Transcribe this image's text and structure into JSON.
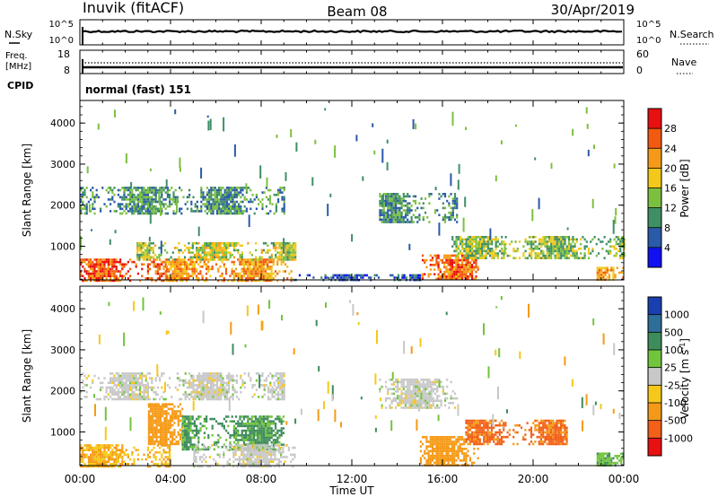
{
  "header": {
    "station": "Inuvik (fitACF)",
    "beam": "Beam 08",
    "date": "30/Apr/2019"
  },
  "noise_panel": {
    "left_label": "N.Sky",
    "right_label": "N.Search",
    "left_ticks": [
      "10^5",
      "10^0"
    ],
    "right_ticks": [
      "10^5",
      "10^0"
    ]
  },
  "freq_panel": {
    "left_label_1": "Freq.",
    "left_label_2": "[MHz]",
    "right_label": "Nave",
    "left_ticks": [
      "18",
      "8"
    ],
    "right_ticks": [
      "60",
      "0"
    ],
    "cpid_label": "CPID",
    "cpid_text": "normal (fast) 151"
  },
  "axes": {
    "x_ticks": [
      "00:00",
      "04:00",
      "08:00",
      "12:00",
      "16:00",
      "20:00",
      "00:00"
    ],
    "x_label": "Time UT",
    "y_label": "Slant Range [km]",
    "y_ticks": [
      "1000",
      "2000",
      "3000",
      "4000"
    ]
  },
  "power_scale": {
    "label": "Power [dB]",
    "ticks": [
      "4",
      "8",
      "12",
      "16",
      "20",
      "24",
      "28"
    ],
    "colors": [
      "#1010f0",
      "#2a5aa8",
      "#3f8f65",
      "#7cc040",
      "#f2c81a",
      "#f59a18",
      "#f25a10",
      "#e81010"
    ]
  },
  "velocity_scale": {
    "label": "Velocity [m s",
    "label_sup": "-1",
    "label_end": "]",
    "ticks": [
      "1000",
      "500",
      "100",
      "25",
      "-25",
      "-100",
      "-500",
      "-1000"
    ],
    "colors": [
      "#1a3fb0",
      "#2e6e98",
      "#3e8c5c",
      "#72c43c",
      "#c8c8c8",
      "#f5c81a",
      "#f59a18",
      "#f2601a",
      "#e81010"
    ]
  },
  "chart_data": [
    {
      "type": "heatmap",
      "title": "Power",
      "xlabel": "Time UT",
      "ylabel": "Slant Range [km]",
      "xlim": [
        0,
        24
      ],
      "ylim": [
        180,
        4550
      ],
      "zlim": [
        0,
        32
      ],
      "echo_regions": [
        {
          "t": [
            0,
            3.8
          ],
          "r": [
            180,
            700
          ],
          "value": 26
        },
        {
          "t": [
            3.8,
            9.4
          ],
          "r": [
            180,
            700
          ],
          "value": 22
        },
        {
          "t": [
            2.5,
            9.5
          ],
          "r": [
            700,
            1100
          ],
          "value": 15
        },
        {
          "t": [
            0,
            9.0
          ],
          "r": [
            1800,
            2450
          ],
          "value": 10
        },
        {
          "t": [
            9.4,
            15.0
          ],
          "r": [
            180,
            320
          ],
          "value": 6
        },
        {
          "t": [
            15.0,
            17.6
          ],
          "r": [
            180,
            800
          ],
          "value": 25
        },
        {
          "t": [
            16.4,
            24
          ],
          "r": [
            700,
            1250
          ],
          "value": 14
        },
        {
          "t": [
            13.2,
            16.6
          ],
          "r": [
            1600,
            2300
          ],
          "value": 10
        },
        {
          "t": [
            22.8,
            24
          ],
          "r": [
            180,
            500
          ],
          "value": 22
        }
      ]
    },
    {
      "type": "heatmap",
      "title": "Velocity",
      "xlabel": "Time UT",
      "ylabel": "Slant Range [km]",
      "xlim": [
        0,
        24
      ],
      "ylim": [
        180,
        4550
      ],
      "zlim": [
        -1000,
        1000
      ],
      "echo_regions": [
        {
          "t": [
            0,
            4.0
          ],
          "r": [
            180,
            700
          ],
          "value": -100
        },
        {
          "t": [
            3.0,
            4.5
          ],
          "r": [
            700,
            1700
          ],
          "value": -300
        },
        {
          "t": [
            4.5,
            9.0
          ],
          "r": [
            600,
            1400
          ],
          "value": 120
        },
        {
          "t": [
            5.0,
            9.5
          ],
          "r": [
            180,
            700
          ],
          "value": 0
        },
        {
          "t": [
            0,
            9.0
          ],
          "r": [
            1800,
            2450
          ],
          "value": 0
        },
        {
          "t": [
            13.2,
            16.6
          ],
          "r": [
            1600,
            2300
          ],
          "value": 0
        },
        {
          "t": [
            15.0,
            17.6
          ],
          "r": [
            180,
            900
          ],
          "value": -200
        },
        {
          "t": [
            17.0,
            21.5
          ],
          "r": [
            700,
            1300
          ],
          "value": -600
        },
        {
          "t": [
            22.8,
            24
          ],
          "r": [
            180,
            500
          ],
          "value": 80
        }
      ]
    }
  ]
}
